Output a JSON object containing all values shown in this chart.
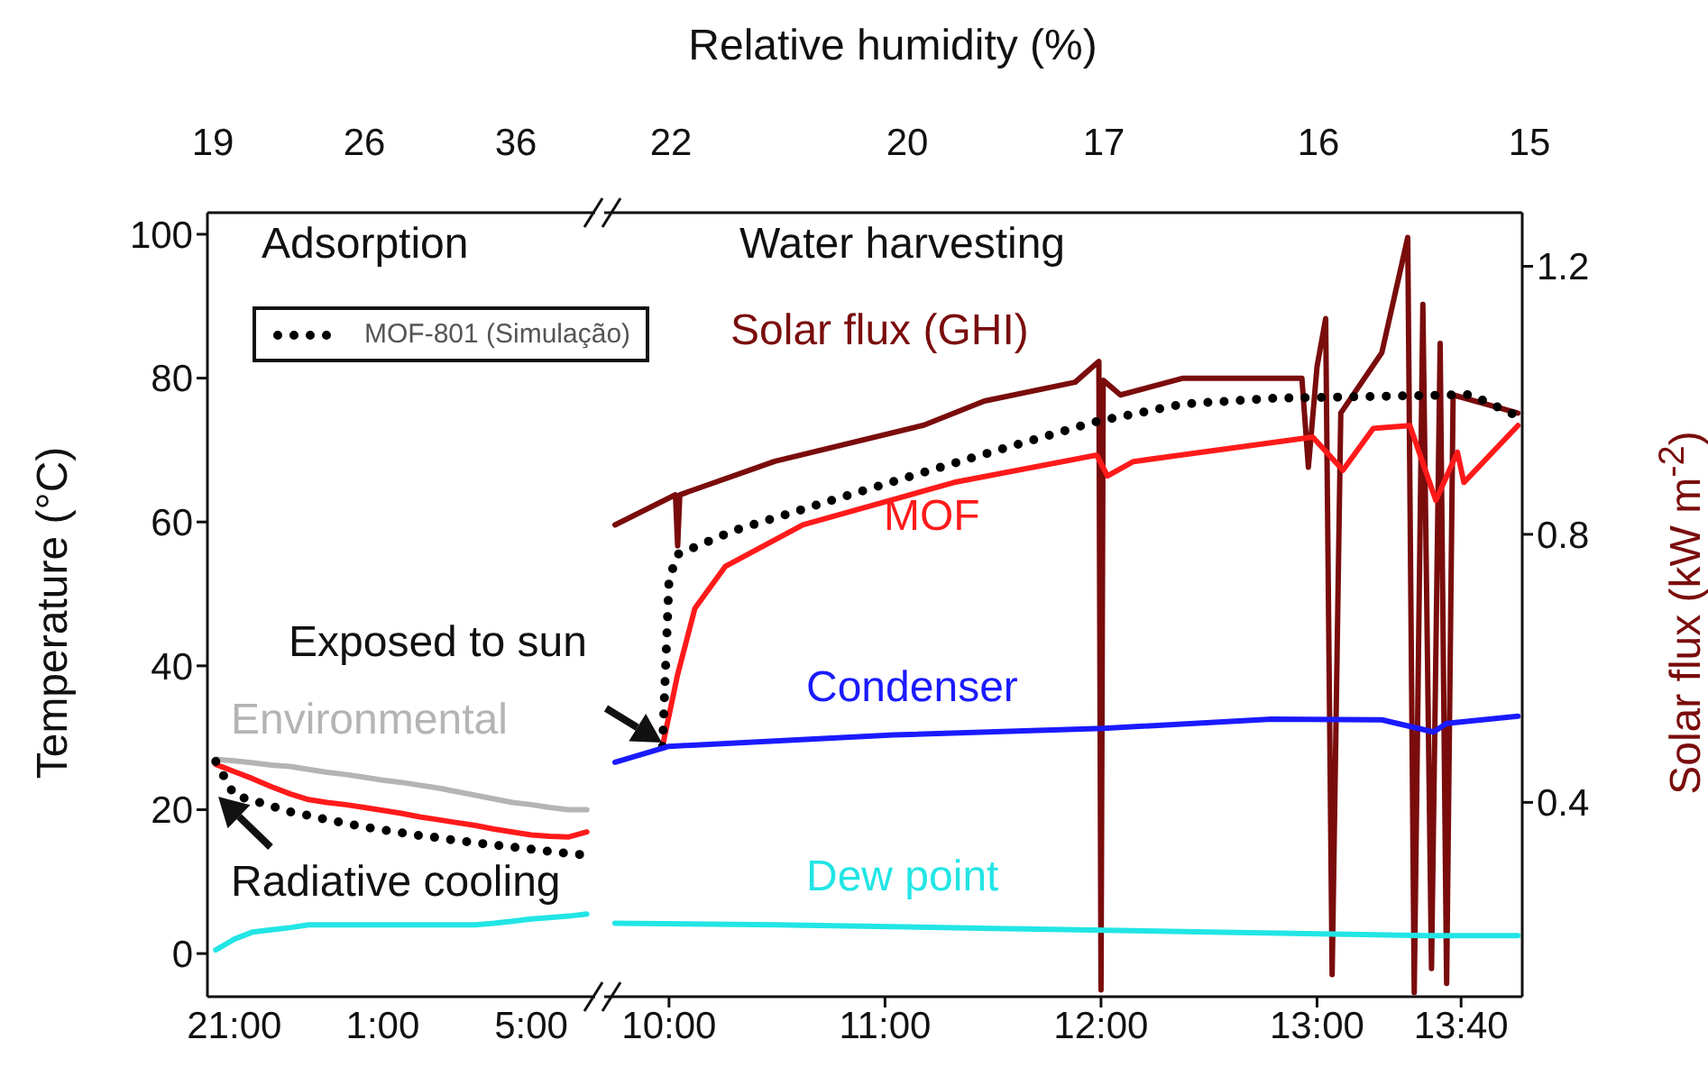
{
  "chart_data": [
    {
      "type": "line",
      "ylabel": "Temperature (°C)",
      "categories": [
        null,
        "21:00",
        null,
        null,
        null,
        null,
        null,
        null,
        null,
        "1:00",
        null,
        null,
        null,
        null,
        null,
        null,
        null,
        "5:00",
        null,
        null,
        null
      ],
      "ylim": [
        -6,
        103
      ],
      "yticks": [
        0,
        20,
        40,
        60,
        80,
        100
      ],
      "legend": "top right",
      "annotations": [
        "Adsorption",
        "Radiative cooling",
        "19",
        "26",
        "36"
      ],
      "series": [
        {
          "name": "Environmental",
          "color": "#b4b4b4",
          "values": [
            27,
            26.8,
            26.5,
            26.2,
            26,
            25.6,
            25.2,
            24.9,
            24.5,
            24.1,
            23.8,
            23.4,
            23,
            22.5,
            22,
            21.5,
            21,
            20.7,
            20.3,
            20,
            20
          ]
        },
        {
          "color": "#ff1a1a",
          "values": [
            26.3,
            25.3,
            24.3,
            23.2,
            22.2,
            21.4,
            21,
            20.7,
            20.3,
            19.9,
            19.5,
            19,
            18.6,
            18.2,
            17.8,
            17.3,
            16.9,
            16.5,
            16.3,
            16.2,
            16.9
          ]
        },
        {
          "name": "MOF-801 (Simulação)",
          "color": "#000000",
          "line_style": "dotted",
          "values": [
            26.7,
            22,
            21.3,
            20.5,
            19.7,
            19.2,
            18.6,
            18.1,
            17.6,
            17.2,
            16.8,
            16.4,
            16.1,
            15.7,
            15.4,
            15.1,
            14.8,
            14.5,
            14.2,
            13.9,
            13.7
          ]
        },
        {
          "color": "#22e5e5",
          "values": [
            0.5,
            2,
            3,
            3.3,
            3.6,
            4,
            4,
            4,
            4,
            4,
            4,
            4,
            4,
            4,
            4,
            4.2,
            4.5,
            4.8,
            5,
            5.2,
            5.5
          ]
        }
      ]
    },
    {
      "type": "line",
      "x2label": "Relative humidity (%)",
      "y2label": "Solar flux (kW m$^{-2}$)",
      "xlim": [
        9.7,
        13.95
      ],
      "xticks": [
        {
          "value": 10,
          "label": "10:00"
        },
        {
          "value": 11,
          "label": "11:00"
        },
        {
          "value": 12,
          "label": "12:00"
        },
        {
          "value": 13,
          "label": "13:00"
        },
        {
          "value": 13.667,
          "label": "13:40"
        }
      ],
      "ylim": [
        -6,
        103
      ],
      "y2lim": [
        0.11,
        1.28
      ],
      "y2ticks": [
        0.4,
        0.8,
        1.2
      ],
      "annotations": [
        "Water harvesting",
        "Exposed to sun",
        "22",
        "20",
        "17",
        "16",
        "15"
      ],
      "series": [
        {
          "name": "Solar flux (GHI)",
          "axis": "y2",
          "color": "#7a0c0c",
          "x": [
            9.75,
            10.03,
            10.04,
            10.05,
            10.49,
            11.18,
            11.46,
            11.88,
            11.99,
            12.0,
            12.01,
            12.09,
            12.38,
            12.93,
            12.96,
            13.0,
            13.04,
            13.07,
            13.11,
            13.3,
            13.42,
            13.45,
            13.49,
            13.53,
            13.57,
            13.6,
            13.63,
            13.93
          ],
          "values": [
            0.814,
            0.859,
            0.783,
            0.859,
            0.909,
            0.963,
            0.999,
            1.027,
            1.058,
            0.12,
            1.03,
            1.008,
            1.033,
            1.033,
            0.9,
            1.05,
            1.122,
            0.143,
            0.981,
            1.071,
            1.243,
            0.116,
            1.143,
            0.152,
            1.085,
            0.13,
            1.008,
            0.981
          ]
        },
        {
          "name": "MOF",
          "color": "#ff1a1a",
          "x": [
            9.97,
            10.04,
            10.12,
            10.26,
            10.62,
            11.32,
            11.98,
            12.03,
            12.15,
            12.98,
            13.12,
            13.26,
            13.43,
            13.55,
            13.65,
            13.68,
            13.93
          ],
          "values": [
            28.8,
            38.8,
            48,
            53.8,
            59.6,
            65.5,
            69.3,
            66.4,
            68.4,
            71.8,
            67.2,
            73,
            73.4,
            63,
            69.7,
            65.5,
            73.4
          ]
        },
        {
          "color": "#000000",
          "line_style": "dotted",
          "x": [
            9.97,
            10.0,
            10.04,
            10.3,
            10.85,
            11.4,
            11.97,
            12.38,
            12.8,
            13.71,
            13.93
          ],
          "values": [
            28.8,
            52,
            55.5,
            58.8,
            63.9,
            68.9,
            73.9,
            76.4,
            77.2,
            77.7,
            74.7
          ]
        },
        {
          "name": "Condenser",
          "color": "#1a1aff",
          "x": [
            9.75,
            10.0,
            11.04,
            12.01,
            12.79,
            13.3,
            13.54,
            13.6,
            13.93
          ],
          "values": [
            26.6,
            28.8,
            30.4,
            31.3,
            32.6,
            32.5,
            30.8,
            32,
            33
          ]
        },
        {
          "name": "Dew point",
          "color": "#22e5e5",
          "x": [
            9.75,
            10.5,
            11.5,
            12.5,
            13.5,
            13.93
          ],
          "values": [
            4.2,
            4,
            3.5,
            3,
            2.5,
            2.5
          ]
        }
      ]
    }
  ]
}
